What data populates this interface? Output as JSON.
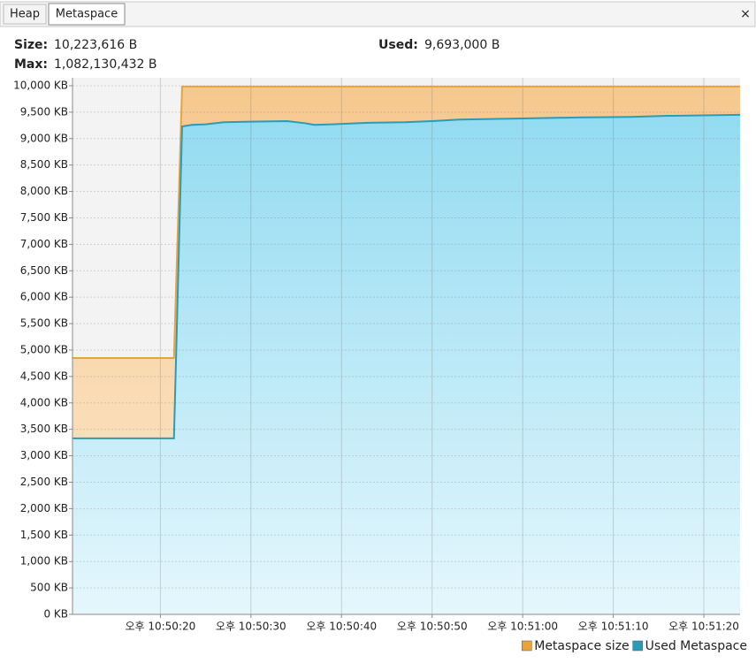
{
  "tabs": [
    "Heap",
    "Metaspace"
  ],
  "info": {
    "size_label": "Size:",
    "size": "10,223,616 B",
    "max_label": "Max:",
    "max": "1,082,130,432 B",
    "used_label": "Used:",
    "used": "9,693,000 B"
  },
  "chart_data": {
    "type": "area",
    "x": [
      10.3,
      21.5,
      22.4,
      23.5,
      25,
      27,
      30,
      34,
      36,
      37,
      39,
      43,
      47,
      50,
      53,
      60,
      66,
      72,
      76,
      84
    ],
    "series": [
      {
        "name": "Metaspace size",
        "color": "#e8a33d",
        "values": [
          4850,
          4850,
          9984,
          9984,
          9984,
          9984,
          9984,
          9984,
          9984,
          9984,
          9984,
          9984,
          9984,
          9984,
          9984,
          9984,
          9984,
          9984,
          9984,
          9984
        ]
      },
      {
        "name": "Used Metaspace",
        "color": "#2a9cb8",
        "values": [
          3330,
          3330,
          9230,
          9260,
          9270,
          9310,
          9320,
          9330,
          9290,
          9260,
          9270,
          9300,
          9310,
          9330,
          9360,
          9380,
          9400,
          9410,
          9430,
          9450
        ]
      }
    ],
    "xlim": [
      10.3,
      84
    ],
    "xticks": [
      {
        "value": 20,
        "label": "오후 10:50:20"
      },
      {
        "value": 30,
        "label": "오후 10:50:30"
      },
      {
        "value": 40,
        "label": "오후 10:50:40"
      },
      {
        "value": 50,
        "label": "오후 10:50:50"
      },
      {
        "value": 60,
        "label": "오후 10:51:00"
      },
      {
        "value": 70,
        "label": "오후 10:51:10"
      },
      {
        "value": 80,
        "label": "오후 10:51:20"
      }
    ],
    "ylim": [
      0,
      10150
    ],
    "yticks": [
      {
        "value": 0,
        "label": "0 KB"
      },
      {
        "value": 500,
        "label": "500 KB"
      },
      {
        "value": 1000,
        "label": "1,000 KB"
      },
      {
        "value": 1500,
        "label": "1,500 KB"
      },
      {
        "value": 2000,
        "label": "2,000 KB"
      },
      {
        "value": 2500,
        "label": "2,500 KB"
      },
      {
        "value": 3000,
        "label": "3,000 KB"
      },
      {
        "value": 3500,
        "label": "3,500 KB"
      },
      {
        "value": 4000,
        "label": "4,000 KB"
      },
      {
        "value": 4500,
        "label": "4,500 KB"
      },
      {
        "value": 5000,
        "label": "5,000 KB"
      },
      {
        "value": 5500,
        "label": "5,500 KB"
      },
      {
        "value": 6000,
        "label": "6,000 KB"
      },
      {
        "value": 6500,
        "label": "6,500 KB"
      },
      {
        "value": 7000,
        "label": "7,000 KB"
      },
      {
        "value": 7500,
        "label": "7,500 KB"
      },
      {
        "value": 8000,
        "label": "8,000 KB"
      },
      {
        "value": 8500,
        "label": "8,500 KB"
      },
      {
        "value": 9000,
        "label": "9,000 KB"
      },
      {
        "value": 9500,
        "label": "9,500 KB"
      },
      {
        "value": 10000,
        "label": "10,000 KB"
      }
    ],
    "grid": true,
    "legend": "bottom-right"
  }
}
